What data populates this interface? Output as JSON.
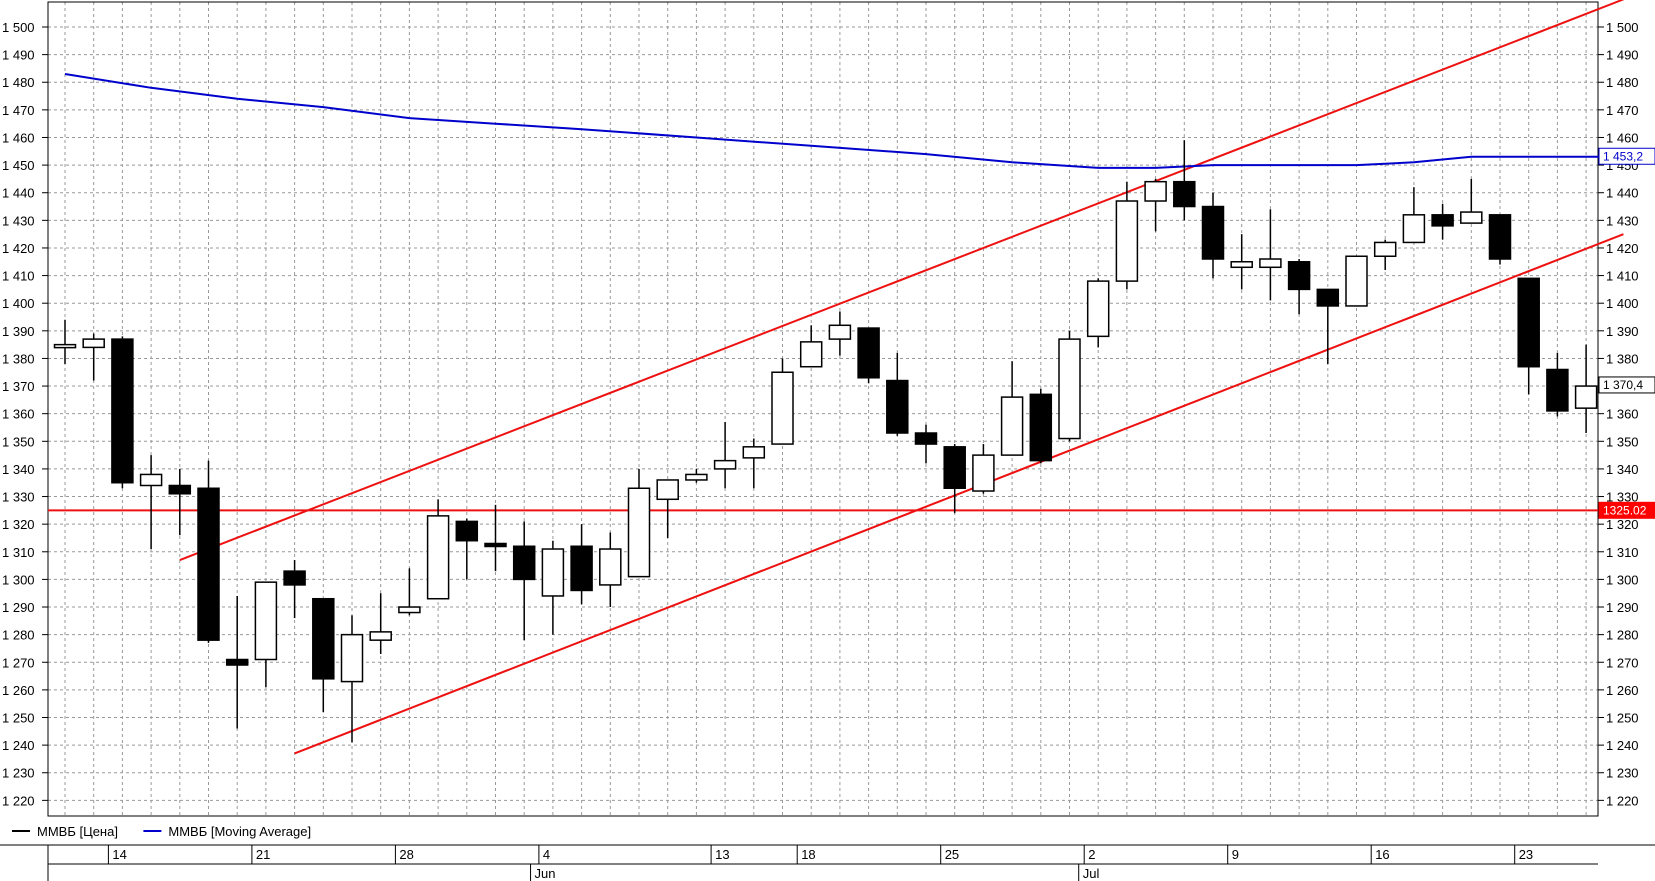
{
  "chart_data": {
    "type": "candlestick",
    "y_axis": {
      "min": 1220,
      "max": 1500,
      "step": 10,
      "tick_labels": [
        "1 220",
        "1 230",
        "1 240",
        "1 250",
        "1 260",
        "1 270",
        "1 280",
        "1 290",
        "1 300",
        "1 310",
        "1 320",
        "1 330",
        "1 340",
        "1 350",
        "1 360",
        "1 370",
        "1 380",
        "1 390",
        "1 400",
        "1 410",
        "1 420",
        "1 430",
        "1 440",
        "1 450",
        "1 460",
        "1 470",
        "1 480",
        "1 490",
        "1 500"
      ],
      "both_sides": true
    },
    "x_axis": {
      "day_labels": [
        {
          "label": "14",
          "index": 2
        },
        {
          "label": "21",
          "index": 7
        },
        {
          "label": "28",
          "index": 12
        },
        {
          "label": "4",
          "index": 17
        },
        {
          "label": "13",
          "index": 23
        },
        {
          "label": "18",
          "index": 26
        },
        {
          "label": "25",
          "index": 31
        },
        {
          "label": "2",
          "index": 36
        },
        {
          "label": "9",
          "index": 41
        },
        {
          "label": "16",
          "index": 46
        },
        {
          "label": "23",
          "index": 51
        }
      ],
      "month_labels": [
        {
          "label": "Jun",
          "index": 16.5
        },
        {
          "label": "Jul",
          "index": 35.6
        }
      ]
    },
    "grid": true,
    "candles": [
      {
        "o": 1384,
        "h": 1394,
        "l": 1378,
        "c": 1385
      },
      {
        "o": 1384,
        "h": 1389,
        "l": 1372,
        "c": 1387
      },
      {
        "o": 1387,
        "h": 1388,
        "l": 1333,
        "c": 1335
      },
      {
        "o": 1334,
        "h": 1345,
        "l": 1311,
        "c": 1338
      },
      {
        "o": 1334,
        "h": 1340,
        "l": 1316,
        "c": 1331
      },
      {
        "o": 1333,
        "h": 1343,
        "l": 1277,
        "c": 1278
      },
      {
        "o": 1271,
        "h": 1294,
        "l": 1246,
        "c": 1269
      },
      {
        "o": 1271,
        "h": 1299,
        "l": 1261,
        "c": 1299
      },
      {
        "o": 1303,
        "h": 1307,
        "l": 1286,
        "c": 1298
      },
      {
        "o": 1293,
        "h": 1293,
        "l": 1252,
        "c": 1264
      },
      {
        "o": 1263,
        "h": 1287,
        "l": 1241,
        "c": 1280
      },
      {
        "o": 1278,
        "h": 1295,
        "l": 1273,
        "c": 1281
      },
      {
        "o": 1288,
        "h": 1304,
        "l": 1287,
        "c": 1290
      },
      {
        "o": 1293,
        "h": 1329,
        "l": 1293,
        "c": 1323
      },
      {
        "o": 1321,
        "h": 1322,
        "l": 1300,
        "c": 1314
      },
      {
        "o": 1313,
        "h": 1327,
        "l": 1303,
        "c": 1312
      },
      {
        "o": 1312,
        "h": 1321,
        "l": 1278,
        "c": 1300
      },
      {
        "o": 1294,
        "h": 1314,
        "l": 1280,
        "c": 1311
      },
      {
        "o": 1312,
        "h": 1320,
        "l": 1291,
        "c": 1296
      },
      {
        "o": 1298,
        "h": 1317,
        "l": 1290,
        "c": 1311
      },
      {
        "o": 1301,
        "h": 1340,
        "l": 1301,
        "c": 1333
      },
      {
        "o": 1329,
        "h": 1336,
        "l": 1315,
        "c": 1336
      },
      {
        "o": 1336,
        "h": 1340,
        "l": 1335,
        "c": 1338
      },
      {
        "o": 1340,
        "h": 1357,
        "l": 1333,
        "c": 1343
      },
      {
        "o": 1344,
        "h": 1351,
        "l": 1333,
        "c": 1348
      },
      {
        "o": 1349,
        "h": 1380,
        "l": 1349,
        "c": 1375
      },
      {
        "o": 1377,
        "h": 1392,
        "l": 1377,
        "c": 1386
      },
      {
        "o": 1387,
        "h": 1397,
        "l": 1381,
        "c": 1392
      },
      {
        "o": 1391,
        "h": 1391,
        "l": 1371,
        "c": 1373
      },
      {
        "o": 1372,
        "h": 1382,
        "l": 1352,
        "c": 1353
      },
      {
        "o": 1353,
        "h": 1356,
        "l": 1342,
        "c": 1349
      },
      {
        "o": 1348,
        "h": 1349,
        "l": 1324,
        "c": 1333
      },
      {
        "o": 1332,
        "h": 1349,
        "l": 1331,
        "c": 1345
      },
      {
        "o": 1345,
        "h": 1379,
        "l": 1345,
        "c": 1366
      },
      {
        "o": 1367,
        "h": 1369,
        "l": 1342,
        "c": 1343
      },
      {
        "o": 1351,
        "h": 1390,
        "l": 1350,
        "c": 1387
      },
      {
        "o": 1388,
        "h": 1409,
        "l": 1384,
        "c": 1408
      },
      {
        "o": 1408,
        "h": 1444,
        "l": 1405,
        "c": 1437
      },
      {
        "o": 1437,
        "h": 1445,
        "l": 1426,
        "c": 1444
      },
      {
        "o": 1444,
        "h": 1459,
        "l": 1430,
        "c": 1435
      },
      {
        "o": 1435,
        "h": 1440,
        "l": 1409,
        "c": 1416
      },
      {
        "o": 1413,
        "h": 1425,
        "l": 1405,
        "c": 1415
      },
      {
        "o": 1413,
        "h": 1434,
        "l": 1401,
        "c": 1416
      },
      {
        "o": 1415,
        "h": 1416,
        "l": 1396,
        "c": 1405
      },
      {
        "o": 1405,
        "h": 1405,
        "l": 1378,
        "c": 1399
      },
      {
        "o": 1399,
        "h": 1417,
        "l": 1399,
        "c": 1417
      },
      {
        "o": 1417,
        "h": 1423,
        "l": 1412,
        "c": 1422
      },
      {
        "o": 1422,
        "h": 1442,
        "l": 1422,
        "c": 1432
      },
      {
        "o": 1432,
        "h": 1436,
        "l": 1423,
        "c": 1428
      },
      {
        "o": 1429,
        "h": 1445,
        "l": 1429,
        "c": 1433
      },
      {
        "o": 1432,
        "h": 1432,
        "l": 1414,
        "c": 1416
      },
      {
        "o": 1409,
        "h": 1409,
        "l": 1367,
        "c": 1377
      },
      {
        "o": 1376,
        "h": 1382,
        "l": 1359,
        "c": 1361
      },
      {
        "o": 1362,
        "h": 1385,
        "l": 1353,
        "c": 1370
      }
    ],
    "moving_average": [
      {
        "i": 0,
        "v": 1483
      },
      {
        "i": 3,
        "v": 1478
      },
      {
        "i": 6,
        "v": 1474
      },
      {
        "i": 9,
        "v": 1471
      },
      {
        "i": 12,
        "v": 1467
      },
      {
        "i": 15,
        "v": 1465
      },
      {
        "i": 18,
        "v": 1463
      },
      {
        "i": 22,
        "v": 1460
      },
      {
        "i": 26,
        "v": 1457
      },
      {
        "i": 30,
        "v": 1454
      },
      {
        "i": 33,
        "v": 1451
      },
      {
        "i": 36,
        "v": 1449
      },
      {
        "i": 38,
        "v": 1449
      },
      {
        "i": 40,
        "v": 1450
      },
      {
        "i": 42,
        "v": 1450
      },
      {
        "i": 45,
        "v": 1450
      },
      {
        "i": 47,
        "v": 1451
      },
      {
        "i": 49,
        "v": 1453
      },
      {
        "i": 54,
        "v": 1453
      }
    ],
    "trend_lines": [
      {
        "i1": 4,
        "v1": 1307,
        "i2": 54.3,
        "v2": 1510
      },
      {
        "i1": 8,
        "v1": 1237,
        "i2": 54.3,
        "v2": 1425
      }
    ],
    "horizontal_line": 1325,
    "price_tags": [
      {
        "text": "1 453,2",
        "value": 1453.2,
        "color": "#0000cc",
        "style": "outline"
      },
      {
        "text": "1 370,4",
        "value": 1370.4,
        "color": "#000000",
        "style": "outline"
      },
      {
        "text": "1325.02",
        "value": 1325.02,
        "color": "#ff0000",
        "style": "filled"
      }
    ],
    "legend": [
      {
        "name": "ММВБ [Цена]",
        "color": "#000000"
      },
      {
        "name": "ММВБ [Moving Average]",
        "color": "#0000cc"
      }
    ],
    "colors": {
      "trend": "#ee1111",
      "ma": "#0000cc",
      "grid": "#999999",
      "bull_fill": "#ffffff",
      "bear_fill": "#000000"
    }
  }
}
